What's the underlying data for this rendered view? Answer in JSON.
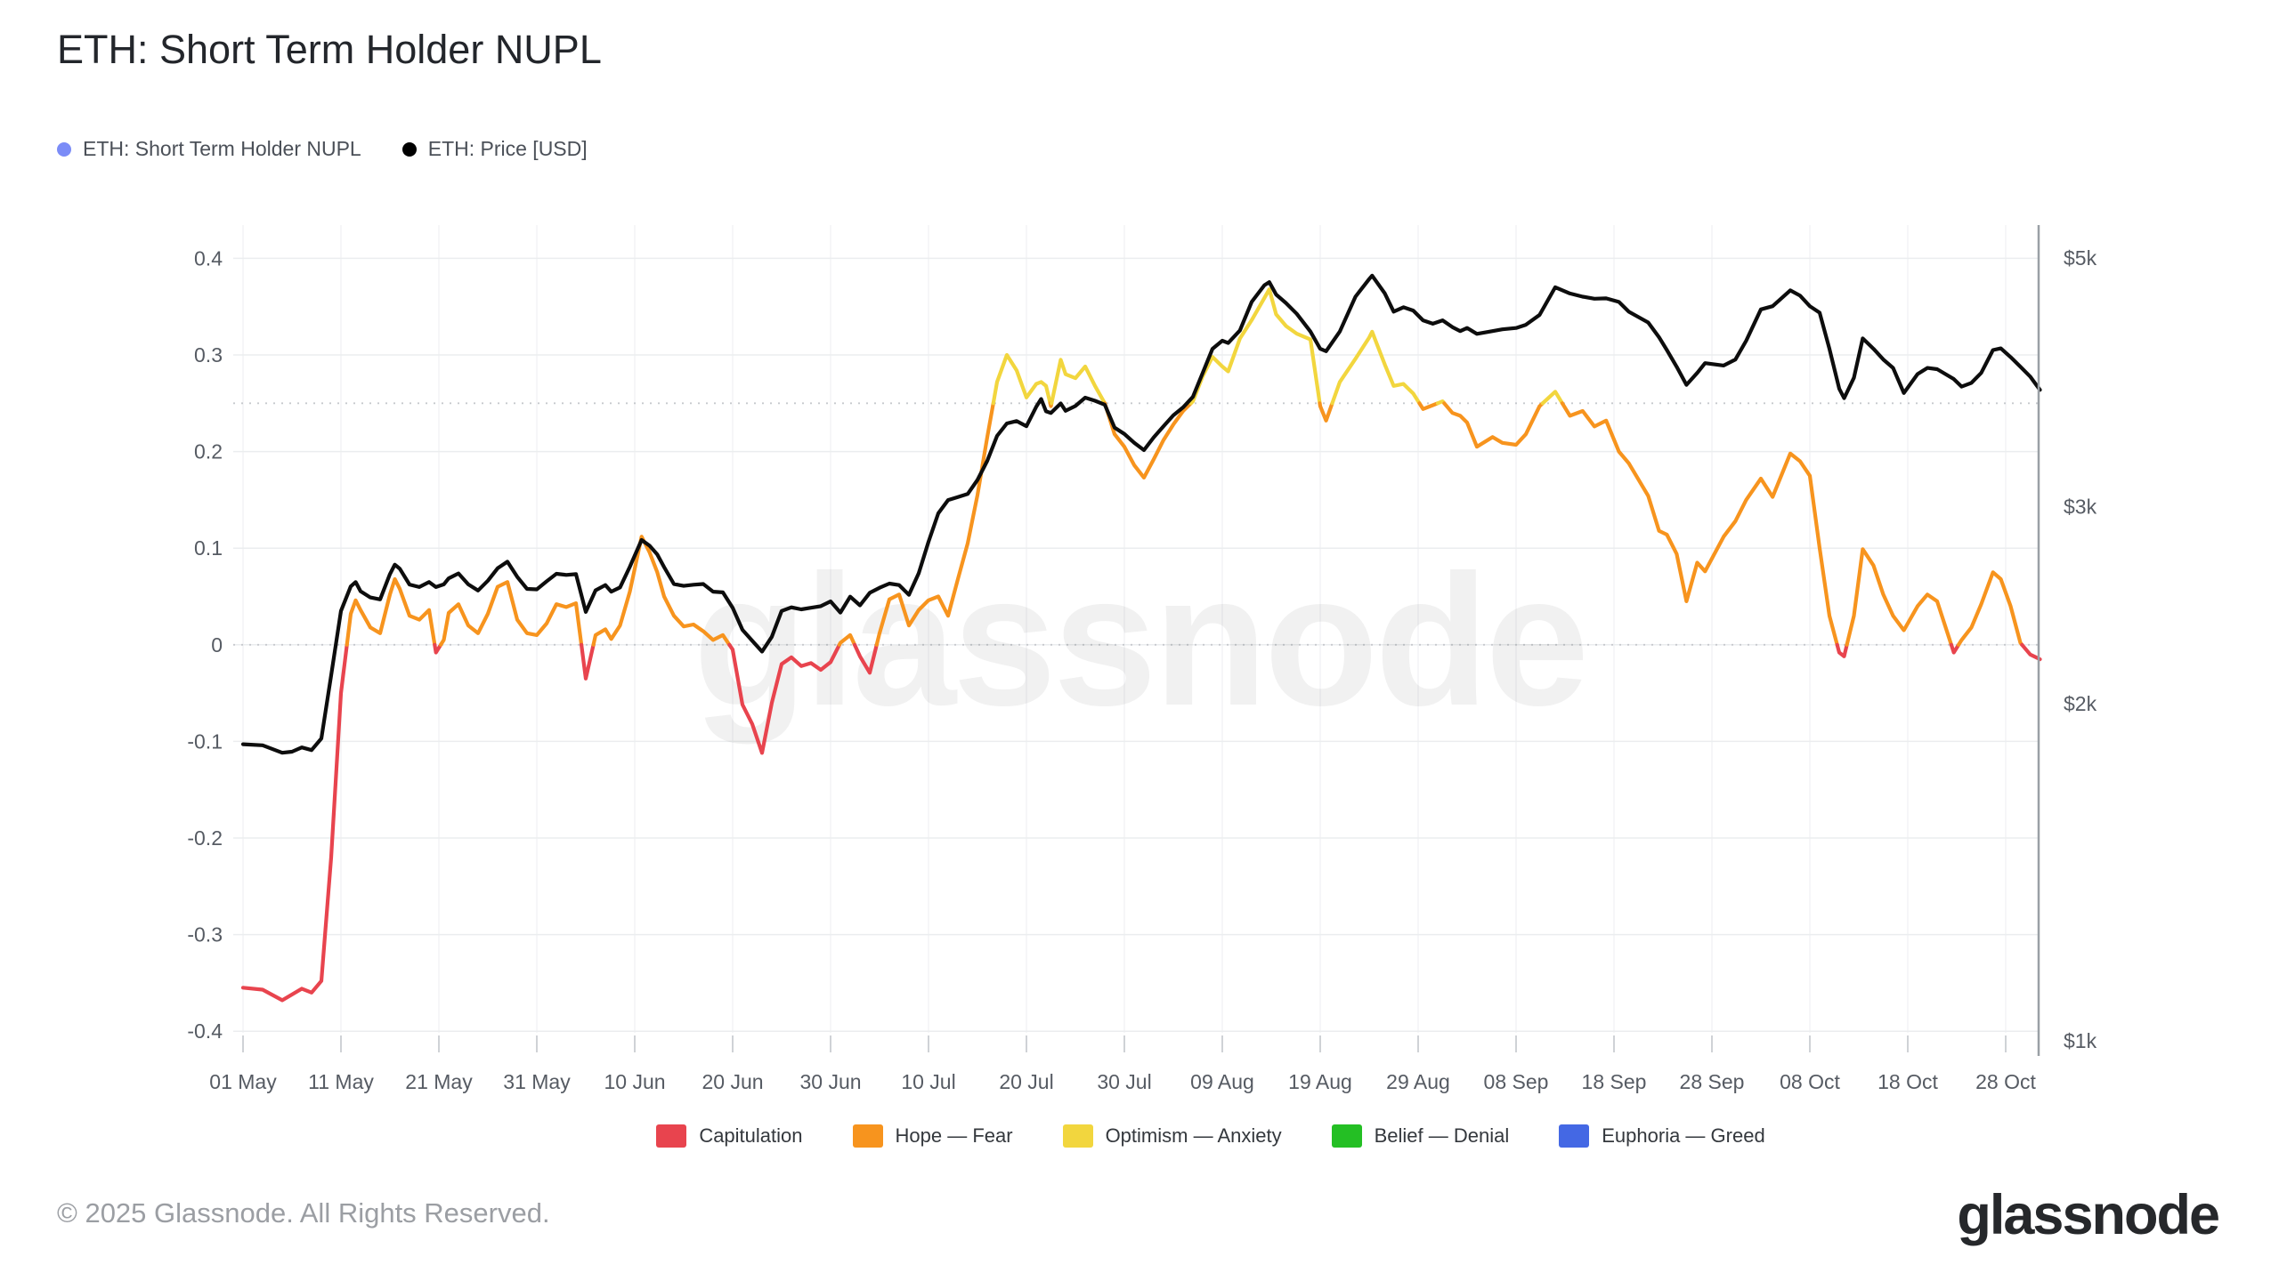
{
  "header": {
    "title": "ETH: Short Term Holder NUPL"
  },
  "top_legend": [
    {
      "label": "ETH: Short Term Holder NUPL",
      "color": "#7b8cf7"
    },
    {
      "label": "ETH: Price [USD]",
      "color": "#000000"
    }
  ],
  "bottom_legend": [
    {
      "label": "Capitulation",
      "color": "#e8444e"
    },
    {
      "label": "Hope — Fear",
      "color": "#f7941e"
    },
    {
      "label": "Optimism — Anxiety",
      "color": "#f2d63e"
    },
    {
      "label": "Belief — Denial",
      "color": "#24bf24"
    },
    {
      "label": "Euphoria — Greed",
      "color": "#4468e4"
    }
  ],
  "footer": {
    "copyright": "© 2025 Glassnode. All Rights Reserved.",
    "brand": "glassnode"
  },
  "watermark": "glassnode",
  "chart_data": {
    "type": "line",
    "title": "ETH: Short Term Holder NUPL",
    "x_axis": {
      "tick_labels": [
        "01 May",
        "11 May",
        "21 May",
        "31 May",
        "10 Jun",
        "20 Jun",
        "30 Jun",
        "10 Jul",
        "20 Jul",
        "30 Jul",
        "09 Aug",
        "19 Aug",
        "29 Aug",
        "08 Sep",
        "18 Sep",
        "28 Sep",
        "08 Oct",
        "18 Oct",
        "28 Oct"
      ],
      "tick_days": [
        0,
        10,
        20,
        30,
        40,
        50,
        60,
        70,
        80,
        90,
        100,
        110,
        120,
        130,
        140,
        150,
        160,
        170,
        180
      ],
      "start_label": "01 May",
      "end_day": 183.5
    },
    "y_axis_left": {
      "tick_labels": [
        "0.4",
        "0.3",
        "0.2",
        "0.1",
        "0",
        "-0.1",
        "-0.2",
        "-0.3",
        "-0.4"
      ],
      "tick_values": [
        0.4,
        0.3,
        0.2,
        0.1,
        0,
        -0.1,
        -0.2,
        -0.3,
        -0.4
      ],
      "dotted_thresholds": [
        0,
        0.25
      ],
      "range": [
        -0.44,
        0.44
      ],
      "grid": true
    },
    "y_axis_right": {
      "tick_labels": [
        "$5k",
        "$3k",
        "$2k",
        "$1k"
      ],
      "tick_values": [
        5000,
        3000,
        2000,
        1000
      ],
      "scale": "log"
    },
    "zones": [
      {
        "name": "Capitulation",
        "max": 0,
        "color": "#e8444e"
      },
      {
        "name": "Hope — Fear",
        "min": 0,
        "max": 0.25,
        "color": "#f7941e"
      },
      {
        "name": "Optimism — Anxiety",
        "min": 0.25,
        "max": 0.5,
        "color": "#f2d63e"
      },
      {
        "name": "Belief — Denial",
        "min": 0.5,
        "max": 0.75,
        "color": "#24bf24"
      },
      {
        "name": "Euphoria — Greed",
        "min": 0.75,
        "max": 1,
        "color": "#4468e4"
      }
    ],
    "x_days": [
      0,
      2,
      4,
      5,
      6,
      7,
      8,
      9,
      10,
      11,
      11.5,
      12,
      13,
      14,
      15,
      15.5,
      16,
      17,
      18,
      19,
      19.7,
      20.5,
      21,
      22,
      23,
      24,
      25,
      26,
      27,
      28,
      29,
      30,
      31,
      32,
      33,
      34,
      35,
      36,
      37,
      37.6,
      38.5,
      39.5,
      40.7,
      41.5,
      42.3,
      43,
      44,
      45,
      46,
      47,
      48,
      49,
      50,
      51,
      52,
      53,
      54,
      55,
      56,
      57,
      58,
      59,
      60,
      61,
      62,
      63,
      64,
      65,
      66,
      67,
      68,
      69,
      70,
      71,
      72,
      73,
      74,
      75,
      76,
      77,
      78,
      79,
      80,
      81,
      81.5,
      82,
      82.5,
      83.5,
      84,
      85,
      86,
      87,
      88,
      89,
      90,
      91,
      92,
      93,
      94,
      95,
      96,
      97,
      98,
      99,
      100,
      100.6,
      101.8,
      103,
      104.3,
      104.8,
      105.5,
      106.5,
      107.6,
      109,
      110,
      110.6,
      112,
      113.6,
      115,
      115.3,
      116.6,
      117.5,
      118.5,
      119.5,
      120.5,
      121.5,
      122.5,
      123.5,
      124.3,
      125,
      126,
      127.6,
      128.6,
      130,
      131,
      132.4,
      134,
      135.5,
      136.8,
      138,
      139.2,
      140.5,
      141.5,
      143.5,
      144.6,
      145.4,
      146.4,
      147.4,
      148.5,
      149.3,
      151.2,
      152.4,
      153.5,
      155,
      156.2,
      158,
      159,
      160,
      161,
      162,
      163,
      163.5,
      164.5,
      165.4,
      166.5,
      167.5,
      168.5,
      169.6,
      171,
      172,
      173,
      174.7,
      175.5,
      176.5,
      177.5,
      178.7,
      179.5,
      180.5,
      181.5,
      182.5,
      183.5
    ],
    "series": [
      {
        "name": "ETH: Short Term Holder NUPL",
        "axis": "left",
        "multicolor_by_zone": true,
        "values": [
          -0.355,
          -0.357,
          -0.368,
          -0.362,
          -0.356,
          -0.36,
          -0.348,
          -0.22,
          -0.05,
          0.032,
          0.046,
          0.036,
          0.018,
          0.012,
          0.052,
          0.068,
          0.058,
          0.03,
          0.026,
          0.036,
          -0.008,
          0.005,
          0.033,
          0.042,
          0.02,
          0.012,
          0.032,
          0.06,
          0.065,
          0.026,
          0.012,
          0.01,
          0.022,
          0.042,
          0.039,
          0.043,
          -0.035,
          0.01,
          0.016,
          0.006,
          0.02,
          0.055,
          0.112,
          0.096,
          0.075,
          0.05,
          0.03,
          0.019,
          0.021,
          0.014,
          0.005,
          0.01,
          -0.005,
          -0.062,
          -0.082,
          -0.112,
          -0.06,
          -0.02,
          -0.013,
          -0.022,
          -0.019,
          -0.026,
          -0.018,
          0.002,
          0.01,
          -0.012,
          -0.029,
          0.012,
          0.047,
          0.052,
          0.02,
          0.036,
          0.046,
          0.05,
          0.03,
          0.068,
          0.105,
          0.155,
          0.215,
          0.272,
          0.3,
          0.284,
          0.256,
          0.27,
          0.272,
          0.268,
          0.247,
          0.295,
          0.28,
          0.276,
          0.288,
          0.268,
          0.25,
          0.218,
          0.205,
          0.186,
          0.173,
          0.192,
          0.212,
          0.228,
          0.242,
          0.252,
          0.278,
          0.298,
          0.288,
          0.283,
          0.317,
          0.336,
          0.359,
          0.368,
          0.342,
          0.33,
          0.322,
          0.316,
          0.247,
          0.232,
          0.272,
          0.296,
          0.318,
          0.324,
          0.29,
          0.268,
          0.27,
          0.26,
          0.244,
          0.248,
          0.252,
          0.24,
          0.237,
          0.23,
          0.205,
          0.215,
          0.209,
          0.207,
          0.218,
          0.247,
          0.262,
          0.237,
          0.242,
          0.226,
          0.232,
          0.2,
          0.188,
          0.154,
          0.118,
          0.114,
          0.094,
          0.045,
          0.085,
          0.076,
          0.112,
          0.128,
          0.15,
          0.172,
          0.153,
          0.198,
          0.19,
          0.175,
          0.1,
          0.03,
          -0.008,
          -0.012,
          0.03,
          0.099,
          0.082,
          0.052,
          0.03,
          0.015,
          0.04,
          0.052,
          0.045,
          -0.008,
          0.005,
          0.018,
          0.042,
          0.075,
          0.068,
          0.04,
          0.002,
          -0.01,
          -0.015
        ]
      },
      {
        "name": "ETH: Price [USD]",
        "axis": "right",
        "color": "#0d0d0d",
        "values": [
          1840,
          1836,
          1808,
          1812,
          1828,
          1818,
          1862,
          2120,
          2420,
          2545,
          2568,
          2520,
          2488,
          2478,
          2610,
          2662,
          2640,
          2555,
          2542,
          2568,
          2542,
          2556,
          2588,
          2614,
          2556,
          2524,
          2575,
          2642,
          2678,
          2596,
          2532,
          2530,
          2572,
          2612,
          2606,
          2610,
          2415,
          2525,
          2552,
          2518,
          2540,
          2650,
          2800,
          2768,
          2718,
          2648,
          2558,
          2548,
          2554,
          2558,
          2518,
          2514,
          2436,
          2328,
          2276,
          2226,
          2295,
          2420,
          2438,
          2428,
          2436,
          2444,
          2468,
          2412,
          2492,
          2448,
          2512,
          2538,
          2560,
          2552,
          2502,
          2615,
          2790,
          2958,
          3040,
          3058,
          3078,
          3168,
          3295,
          3468,
          3558,
          3576,
          3538,
          3682,
          3742,
          3648,
          3636,
          3708,
          3652,
          3688,
          3752,
          3728,
          3698,
          3528,
          3482,
          3420,
          3368,
          3458,
          3538,
          3618,
          3678,
          3758,
          3948,
          4148,
          4218,
          4198,
          4308,
          4568,
          4728,
          4758,
          4638,
          4558,
          4458,
          4298,
          4148,
          4128,
          4298,
          4618,
          4788,
          4822,
          4648,
          4478,
          4518,
          4488,
          4398,
          4368,
          4398,
          4338,
          4302,
          4330,
          4278,
          4302,
          4318,
          4330,
          4358,
          4448,
          4708,
          4648,
          4618,
          4598,
          4602,
          4568,
          4478,
          4378,
          4248,
          4138,
          3998,
          3852,
          3948,
          4028,
          4008,
          4058,
          4218,
          4498,
          4528,
          4678,
          4628,
          4528,
          4468,
          4148,
          3822,
          3748,
          3908,
          4238,
          4148,
          4058,
          3988,
          3788,
          3938,
          3988,
          3978,
          3898,
          3838,
          3868,
          3948,
          4138,
          4152,
          4078,
          3998,
          3918,
          3812
        ]
      }
    ]
  }
}
